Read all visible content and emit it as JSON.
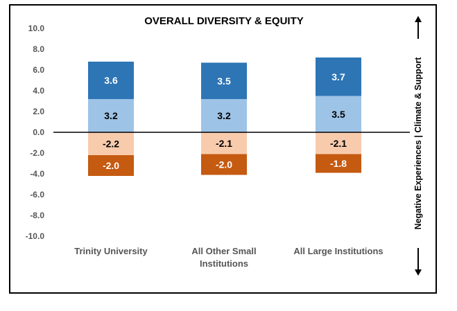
{
  "chart_data": {
    "type": "bar",
    "stacked": true,
    "title": "OVERALL DIVERSITY & EQUITY",
    "categories": [
      "Trinity University",
      "All Other Small Institutions",
      "All Large Institutions"
    ],
    "category_lines": [
      [
        "Trinity University"
      ],
      [
        "All Other Small",
        "Institutions"
      ],
      [
        "All Large Institutions"
      ]
    ],
    "series": [
      {
        "values": [
          3.2,
          3.2,
          3.5
        ],
        "color": "#9DC3E6",
        "label_color": "#000000",
        "direction": "positive"
      },
      {
        "values": [
          3.6,
          3.5,
          3.7
        ],
        "color": "#2E75B6",
        "label_color": "#ffffff",
        "direction": "positive"
      },
      {
        "values": [
          -2.2,
          -2.1,
          -2.1
        ],
        "color": "#F8CBAD",
        "label_color": "#000000",
        "direction": "negative"
      },
      {
        "values": [
          -2.0,
          -2.0,
          -1.8
        ],
        "color": "#C55A11",
        "label_color": "#ffffff",
        "direction": "negative"
      }
    ],
    "value_labels": [
      [
        "3.2",
        "3.2",
        "3.5"
      ],
      [
        "3.6",
        "3.5",
        "3.7"
      ],
      [
        "-2.2",
        "-2.1",
        "-2.1"
      ],
      [
        "-2.0",
        "-2.0",
        "-1.8"
      ]
    ],
    "y_ticks": [
      10,
      8,
      6,
      4,
      2,
      0,
      -2,
      -4,
      -6,
      -8,
      -10
    ],
    "y_tick_labels": [
      "10.0",
      "8.0",
      "6.0",
      "4.0",
      "2.0",
      "0.0",
      "-2.0",
      "-4.0",
      "-6.0",
      "-8.0",
      "-10.0"
    ],
    "ylim": [
      -10,
      10
    ],
    "grid": false,
    "legend": "none",
    "side_label": "Negative Experiences | Climate & Support"
  }
}
